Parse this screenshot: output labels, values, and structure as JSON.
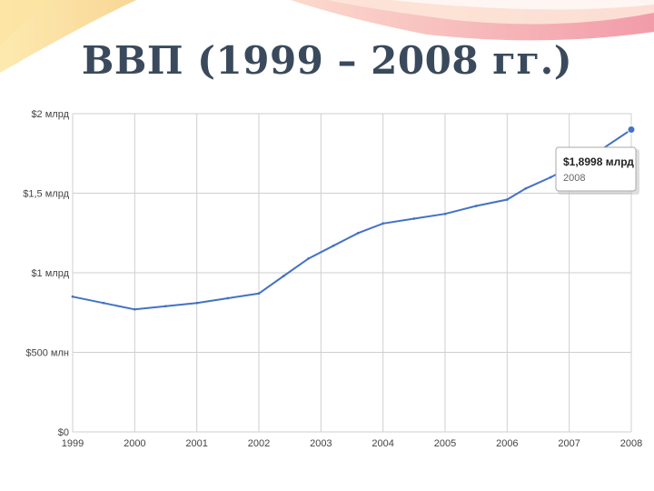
{
  "slide": {
    "title": "ВВП (1999 – 2008 гг.)"
  },
  "chart_data": {
    "type": "line",
    "title": "ВВП (1999 – 2008 гг.)",
    "x_ticks": [
      "1999",
      "2000",
      "2001",
      "2002",
      "2003",
      "2004",
      "2005",
      "2006",
      "2007",
      "2008"
    ],
    "y_ticks": [
      {
        "value": 0,
        "label": "$0"
      },
      {
        "value": 0.5,
        "label": "$500 млн"
      },
      {
        "value": 1.0,
        "label": "$1 млрд"
      },
      {
        "value": 1.5,
        "label": "$1,5 млрд"
      },
      {
        "value": 2.0,
        "label": "$2 млрд"
      }
    ],
    "ylim": [
      0,
      2.0
    ],
    "xlim": [
      1999,
      2008
    ],
    "grid": true,
    "line_color": "#4472c4",
    "series": [
      {
        "points": [
          [
            1999.0,
            0.85
          ],
          [
            1999.5,
            0.81
          ],
          [
            2000.0,
            0.77
          ],
          [
            2000.5,
            0.79
          ],
          [
            2001.0,
            0.81
          ],
          [
            2001.5,
            0.84
          ],
          [
            2002.0,
            0.87
          ],
          [
            2002.4,
            0.98
          ],
          [
            2002.8,
            1.09
          ],
          [
            2003.2,
            1.17
          ],
          [
            2003.6,
            1.25
          ],
          [
            2004.0,
            1.31
          ],
          [
            2004.5,
            1.34
          ],
          [
            2005.0,
            1.37
          ],
          [
            2005.5,
            1.42
          ],
          [
            2006.0,
            1.46
          ],
          [
            2006.3,
            1.53
          ],
          [
            2006.7,
            1.6
          ],
          [
            2007.0,
            1.66
          ],
          [
            2007.5,
            1.77
          ],
          [
            2008.0,
            1.8998
          ]
        ]
      }
    ],
    "tooltip": {
      "value": "$1,8998 млрд",
      "label": "2008",
      "x": 2008,
      "y": 1.8998
    }
  }
}
